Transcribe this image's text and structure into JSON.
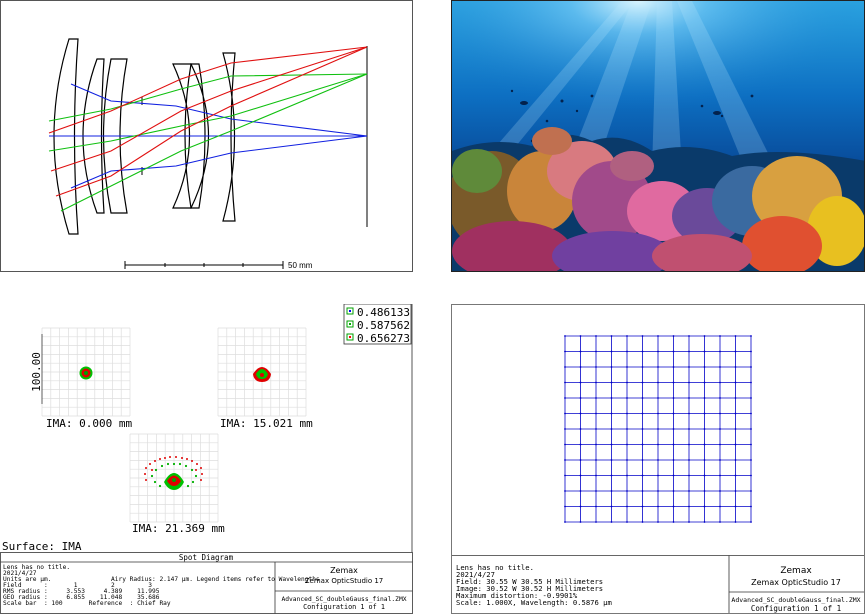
{
  "layout": {
    "scale_bar_label": "50 mm"
  },
  "spot_diagram": {
    "legend": [
      "0.486133",
      "0.587562",
      "0.656273"
    ],
    "legend_colors": [
      "#0000ff",
      "#00b000",
      "#ff0000"
    ],
    "axis_label": "100.00",
    "field_labels": [
      "IMA: 0.000 mm",
      "IMA: 15.021 mm",
      "IMA: 21.369 mm"
    ],
    "surface_label": "Surface: IMA",
    "title": "Spot Diagram",
    "info_lines": [
      "Lens has no title.",
      "2021/4/27",
      "Units are µm.                Airy Radius: 2.147 µm. Legend items refer to Wavelengths",
      "Field      :       1         2         3",
      "RMS radius :     3.553     4.389    11.995",
      "GEO radius :     6.855    11.048    35.686",
      "Scale bar  : 100       Reference  : Chief Ray"
    ],
    "brand": "Zemax",
    "product": "Zemax OpticStudio 17",
    "file": "Advanced_SC_doubleGauss_final.ZMX",
    "config": "Configuration 1 of 1"
  },
  "grid_distortion": {
    "info_lines": [
      "Lens has no title.",
      "2021/4/27",
      "Field: 30.55 W 30.55 H Millimeters",
      "Image: 30.52 W 30.52 H Millimeters",
      "Maximum distortion: -0.9901%",
      "Scale: 1.000X, Wavelength: 0.5876 µm"
    ],
    "brand": "Zemax",
    "product": "Zemax OpticStudio 17",
    "file": "Advanced_SC_doubleGauss_final.ZMX",
    "config": "Configuration 1 of 1",
    "grid_color": "#0000c8",
    "grid_lines": 13
  },
  "photo": {
    "icon": "underwater-coral-reef-photo"
  }
}
